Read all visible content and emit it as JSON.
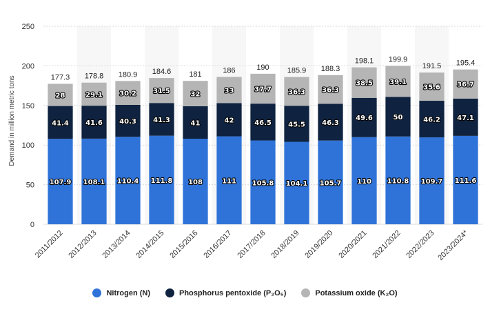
{
  "chart_data": {
    "type": "bar",
    "stacked": true,
    "ylabel": "Demand in million metric tons",
    "ylim": [
      0,
      250
    ],
    "yticks": [
      0,
      50,
      100,
      150,
      200,
      250
    ],
    "grid": true,
    "legend_position": "bottom",
    "categories": [
      "2011/2012",
      "2012/2013",
      "2013/2014",
      "2014/2015",
      "2015/2016",
      "2016/2017",
      "2017/2018",
      "2018/2019",
      "2019/2020",
      "2020/2021",
      "2021/2022",
      "2022/2023",
      "2023/2024*"
    ],
    "series": [
      {
        "name": "Nitrogen (N)",
        "color": "#2f73d8",
        "values": [
          107.9,
          108.1,
          110.4,
          111.8,
          108,
          111,
          105.8,
          104.1,
          105.7,
          110,
          110.8,
          109.7,
          111.6
        ]
      },
      {
        "name": "Phosphorus pentoxide (P₂O₅)",
        "color": "#0f2340",
        "values": [
          41.4,
          41.6,
          40.3,
          41.3,
          41,
          42,
          46.5,
          45.5,
          46.3,
          49.6,
          50,
          46.2,
          47.1
        ]
      },
      {
        "name": "Potassium oxide (K₂O)",
        "color": "#b5b5b5",
        "values": [
          28,
          29.1,
          30.2,
          31.5,
          32,
          33,
          37.7,
          36.3,
          36.3,
          38.5,
          39.1,
          35.6,
          36.7
        ]
      }
    ],
    "totals": [
      177.3,
      178.8,
      180.9,
      184.6,
      181,
      186,
      190,
      185.9,
      188.3,
      198.1,
      199.9,
      191.5,
      195.4
    ]
  }
}
